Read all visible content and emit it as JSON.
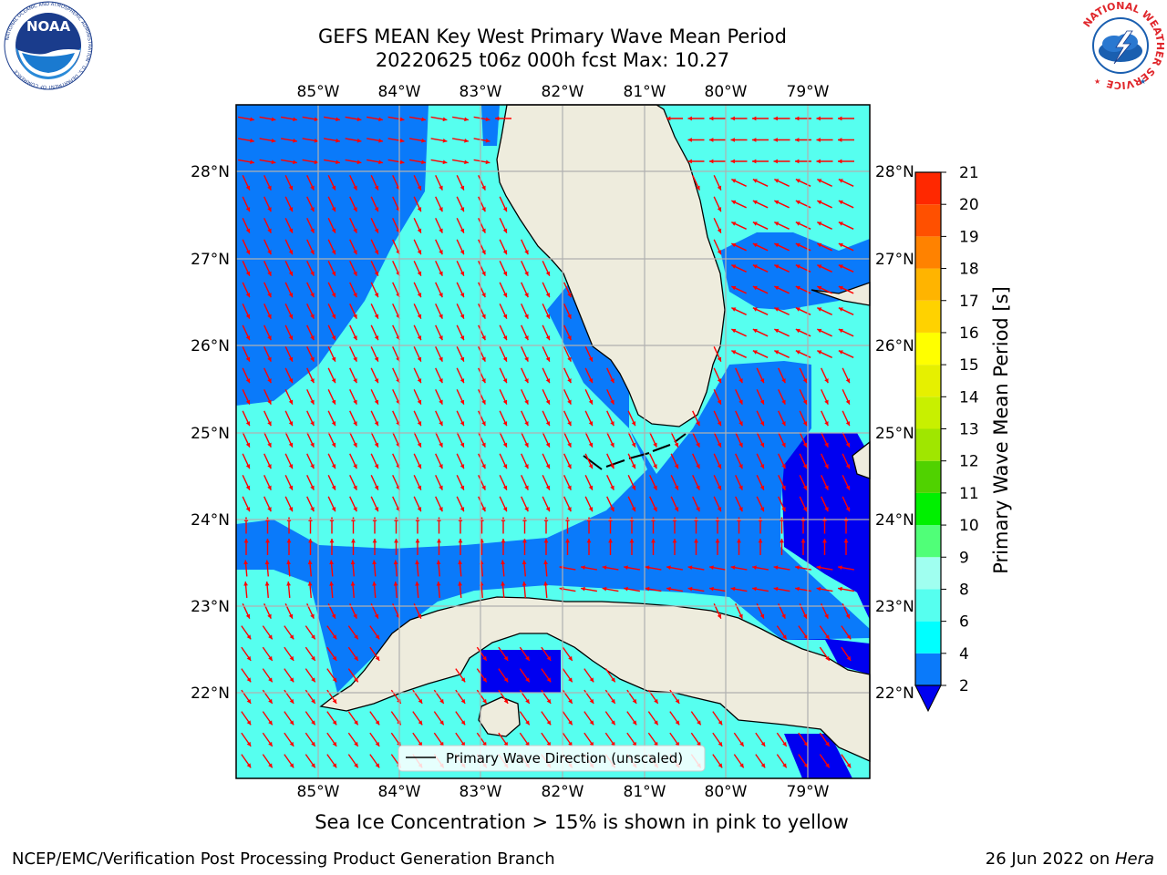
{
  "header": {
    "title_line1": "GEFS MEAN Key West Primary Wave Mean Period",
    "title_line2": "20220625 t06z 000h fcst   Max: 10.27"
  },
  "logos": {
    "noaa": {
      "center_text": "NOAA",
      "ring_text": "NATIONAL OCEANIC AND ATMOSPHERIC ADMINISTRATION · U.S. DEPARTMENT OF COMMERCE"
    },
    "nws": {
      "ring_text": "NATIONAL WEATHER SERVICE"
    }
  },
  "map": {
    "lon_labels": [
      "85°W",
      "84°W",
      "83°W",
      "82°W",
      "81°W",
      "80°W",
      "79°W"
    ],
    "lat_labels": [
      "28°N",
      "27°N",
      "26°N",
      "25°N",
      "24°N",
      "23°N",
      "22°N"
    ],
    "legend_label": "Primary Wave Direction (unscaled)",
    "colors": {
      "land": "#eeecdd",
      "arrow": "#ff0000",
      "grid": "#b0b0b0"
    }
  },
  "colorbar": {
    "title": "Primary Wave Mean Period [s]",
    "ticks": [
      "2",
      "4",
      "6",
      "8",
      "9",
      "10",
      "11",
      "12",
      "13",
      "14",
      "15",
      "16",
      "17",
      "18",
      "19",
      "20",
      "21"
    ],
    "colors": [
      "#0000f0",
      "#0a7afa",
      "#00ffff",
      "#56ffef",
      "#a0fff0",
      "#50ff78",
      "#00f000",
      "#50d200",
      "#a0e600",
      "#c8f000",
      "#e6f000",
      "#ffff00",
      "#ffd200",
      "#ffb400",
      "#ff8200",
      "#ff5000",
      "#ff2800",
      "#ff0000"
    ]
  },
  "caption": "Sea Ice Concentration > 15% is shown in pink to yellow",
  "footer": {
    "left": "NCEP/EMC/Verification Post Processing Product Generation Branch",
    "right_date": "26 Jun 2022 on ",
    "right_host": "Hera"
  }
}
